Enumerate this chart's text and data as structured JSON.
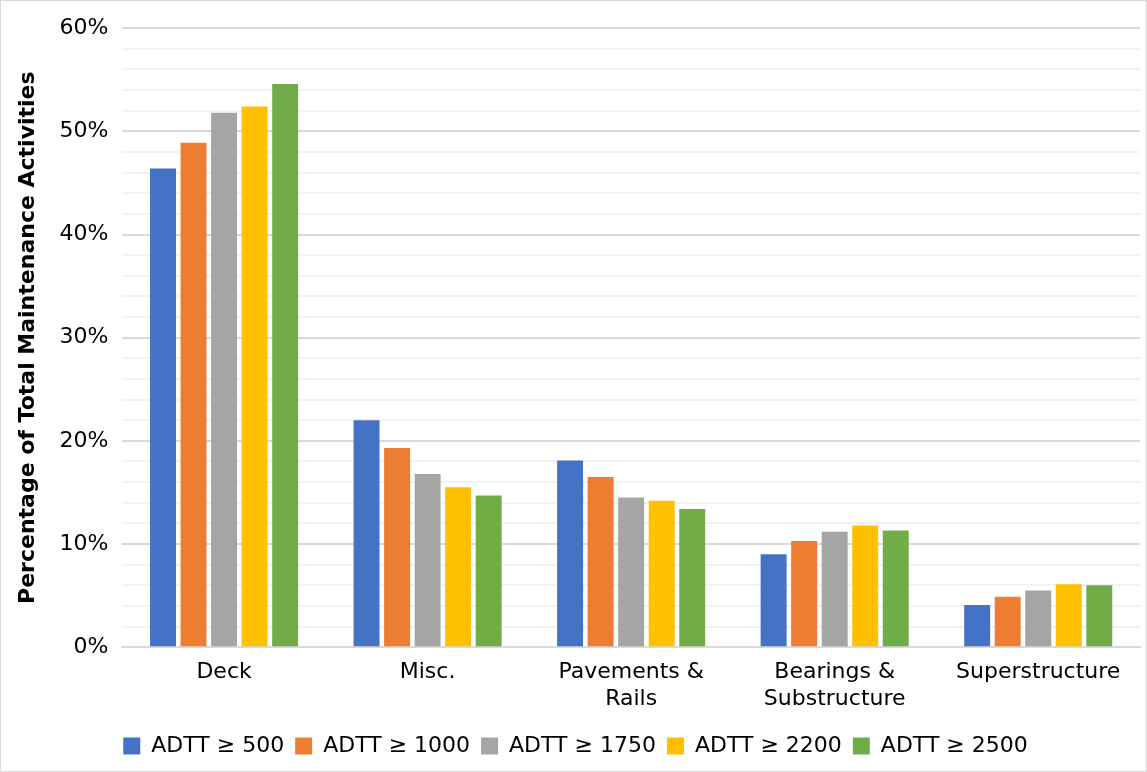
{
  "chart_data": {
    "type": "bar",
    "ylabel": "Percentage of Total Maintenance Activities",
    "categories": [
      "Deck",
      "Misc.",
      "Pavements & Rails",
      "Bearings & Substructure",
      "Superstructure"
    ],
    "series": [
      {
        "name": "ADTT ≥ 500",
        "color": "#4472c4",
        "values": [
          46.4,
          22.0,
          18.1,
          9.0,
          4.1
        ]
      },
      {
        "name": "ADTT ≥ 1000",
        "color": "#ed7d31",
        "values": [
          48.9,
          19.3,
          16.5,
          10.3,
          4.9
        ]
      },
      {
        "name": "ADTT ≥ 1750",
        "color": "#a5a5a5",
        "values": [
          51.8,
          16.8,
          14.5,
          11.2,
          5.5
        ]
      },
      {
        "name": "ADTT ≥ 2200",
        "color": "#ffc000",
        "values": [
          52.4,
          15.5,
          14.2,
          11.8,
          6.1
        ]
      },
      {
        "name": "ADTT ≥ 2500",
        "color": "#70ad47",
        "values": [
          54.6,
          14.7,
          13.4,
          11.3,
          6.0
        ]
      }
    ],
    "ylim": [
      0,
      60
    ],
    "yticks": [
      {
        "value": 0,
        "label": "0%"
      },
      {
        "value": 2,
        "label": null
      },
      {
        "value": 4,
        "label": null
      },
      {
        "value": 6,
        "label": null
      },
      {
        "value": 8,
        "label": null
      },
      {
        "value": 10,
        "label": "10%"
      },
      {
        "value": 12,
        "label": null
      },
      {
        "value": 14,
        "label": null
      },
      {
        "value": 16,
        "label": null
      },
      {
        "value": 18,
        "label": null
      },
      {
        "value": 20,
        "label": "20%"
      },
      {
        "value": 22,
        "label": null
      },
      {
        "value": 24,
        "label": null
      },
      {
        "value": 26,
        "label": null
      },
      {
        "value": 28,
        "label": null
      },
      {
        "value": 30,
        "label": "30%"
      },
      {
        "value": 32,
        "label": null
      },
      {
        "value": 34,
        "label": null
      },
      {
        "value": 36,
        "label": null
      },
      {
        "value": 38,
        "label": null
      },
      {
        "value": 40,
        "label": "40%"
      },
      {
        "value": 42,
        "label": null
      },
      {
        "value": 44,
        "label": null
      },
      {
        "value": 46,
        "label": null
      },
      {
        "value": 48,
        "label": null
      },
      {
        "value": 50,
        "label": "50%"
      },
      {
        "value": 52,
        "label": null
      },
      {
        "value": 54,
        "label": null
      },
      {
        "value": 56,
        "label": null
      },
      {
        "value": 58,
        "label": null
      },
      {
        "value": 60,
        "label": "60%"
      }
    ],
    "grid": "y",
    "legend": "bottom"
  }
}
